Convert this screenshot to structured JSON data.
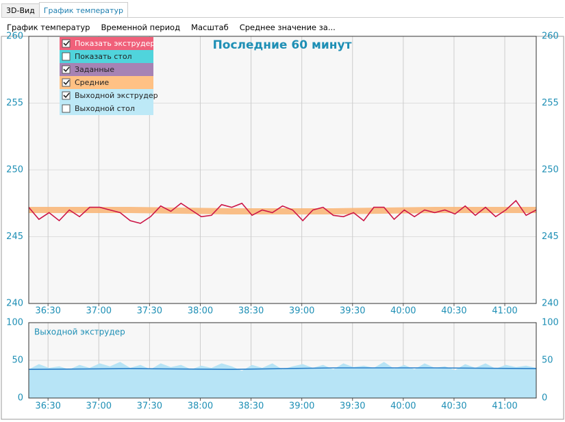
{
  "tabs": [
    "3D-Вид",
    "График температур"
  ],
  "active_tab": 1,
  "menu": [
    "График температур",
    "Временной период",
    "Масштаб",
    "Среднее значение за..."
  ],
  "chart_data": [
    {
      "type": "line",
      "title": "Последние 60 минут",
      "xlim": [
        36.31,
        41.31
      ],
      "xticks": [
        {
          "value": 36.5,
          "label": "36:30"
        },
        {
          "value": 37,
          "label": "37:00"
        },
        {
          "value": 37.5,
          "label": "37:30"
        },
        {
          "value": 38,
          "label": "38:00"
        },
        {
          "value": 38.5,
          "label": "38:30"
        },
        {
          "value": 39,
          "label": "39:00"
        },
        {
          "value": 39.5,
          "label": "39:30"
        },
        {
          "value": 40,
          "label": "40:00"
        },
        {
          "value": 40.5,
          "label": "40:30"
        },
        {
          "value": 41,
          "label": "41:00"
        }
      ],
      "ylim": [
        240,
        260
      ],
      "yticks": [
        240,
        245,
        250,
        255,
        260
      ],
      "grid": true,
      "legend": [
        {
          "label": "Показать экструдер",
          "color": "#f0607a",
          "checked": true
        },
        {
          "label": "Показать стол",
          "color": "#50d4dc",
          "checked": false
        },
        {
          "label": "Заданные",
          "color": "#a683b4",
          "checked": true
        },
        {
          "label": "Средние",
          "color": "#ffc184",
          "checked": true
        },
        {
          "label": "Выходной экструдер",
          "color": "#bde9f7",
          "checked": true
        },
        {
          "label": "Выходной стол",
          "color": "#bde9f7",
          "checked": false
        }
      ],
      "series": [
        {
          "type": "band",
          "color": "#f8b77a",
          "x": [
            36.31,
            37.31,
            38.31,
            39.31,
            40.31,
            41.31
          ],
          "values": [
            247.0,
            247.0,
            246.9,
            246.9,
            247.0,
            247.0
          ]
        },
        {
          "type": "line",
          "color": "#cc1546",
          "x": [
            36.31,
            36.41,
            36.51,
            36.61,
            36.71,
            36.81,
            36.91,
            37.01,
            37.11,
            37.21,
            37.31,
            37.41,
            37.51,
            37.61,
            37.71,
            37.81,
            37.91,
            38.01,
            38.11,
            38.21,
            38.31,
            38.41,
            38.51,
            38.61,
            38.71,
            38.81,
            38.91,
            39.01,
            39.11,
            39.21,
            39.31,
            39.41,
            39.51,
            39.61,
            39.71,
            39.81,
            39.91,
            40.01,
            40.11,
            40.21,
            40.31,
            40.41,
            40.51,
            40.61,
            40.71,
            40.81,
            40.91,
            41.01,
            41.11,
            41.21,
            41.31
          ],
          "values": [
            247.2,
            246.3,
            246.8,
            246.2,
            247.0,
            246.5,
            247.2,
            247.2,
            247.0,
            246.8,
            246.2,
            246.0,
            246.5,
            247.3,
            246.9,
            247.5,
            247.0,
            246.5,
            246.6,
            247.4,
            247.2,
            247.5,
            246.6,
            247.0,
            246.8,
            247.3,
            247.0,
            246.2,
            247.0,
            247.2,
            246.6,
            246.5,
            246.8,
            246.2,
            247.2,
            247.2,
            246.3,
            247.0,
            246.5,
            247.0,
            246.8,
            247.0,
            246.7,
            247.3,
            246.6,
            247.2,
            246.5,
            247.0,
            247.7,
            246.6,
            247.0
          ]
        }
      ]
    },
    {
      "type": "area",
      "title": "Выходной экструдер",
      "xlim": [
        36.31,
        41.31
      ],
      "xticks": [
        {
          "value": 36.5,
          "label": "36:30"
        },
        {
          "value": 37,
          "label": "37:00"
        },
        {
          "value": 37.5,
          "label": "37:30"
        },
        {
          "value": 38,
          "label": "38:00"
        },
        {
          "value": 38.5,
          "label": "38:30"
        },
        {
          "value": 39,
          "label": "39:00"
        },
        {
          "value": 39.5,
          "label": "39:30"
        },
        {
          "value": 40,
          "label": "40:00"
        },
        {
          "value": 40.5,
          "label": "40:30"
        },
        {
          "value": 41,
          "label": "41:00"
        }
      ],
      "ylim": [
        0,
        100
      ],
      "yticks": [
        0,
        50,
        100
      ],
      "grid": true,
      "series": [
        {
          "type": "area",
          "color": "#b7e4f6",
          "x": [
            36.31,
            36.41,
            36.51,
            36.61,
            36.71,
            36.81,
            36.91,
            37.01,
            37.11,
            37.21,
            37.31,
            37.41,
            37.51,
            37.61,
            37.71,
            37.81,
            37.91,
            38.01,
            38.11,
            38.21,
            38.31,
            38.41,
            38.51,
            38.61,
            38.71,
            38.81,
            38.91,
            39.01,
            39.11,
            39.21,
            39.31,
            39.41,
            39.51,
            39.61,
            39.71,
            39.81,
            39.91,
            40.01,
            40.11,
            40.21,
            40.31,
            40.41,
            40.51,
            40.61,
            40.71,
            40.81,
            40.91,
            41.01,
            41.11,
            41.21,
            41.31
          ],
          "values": [
            38,
            45,
            40,
            42,
            38,
            44,
            40,
            46,
            42,
            48,
            40,
            44,
            38,
            46,
            41,
            44,
            38,
            43,
            40,
            46,
            42,
            36,
            44,
            40,
            46,
            38,
            42,
            45,
            40,
            44,
            38,
            46,
            41,
            43,
            40,
            48,
            39,
            44,
            38,
            46,
            40,
            42,
            37,
            45,
            40,
            46,
            39,
            44,
            41,
            43,
            40
          ]
        },
        {
          "type": "line",
          "color": "#2a7fc8",
          "x": [
            36.31,
            37.31,
            38.31,
            39.31,
            40.31,
            41.31
          ],
          "values": [
            38,
            39,
            38,
            40,
            40,
            39
          ]
        }
      ]
    }
  ]
}
